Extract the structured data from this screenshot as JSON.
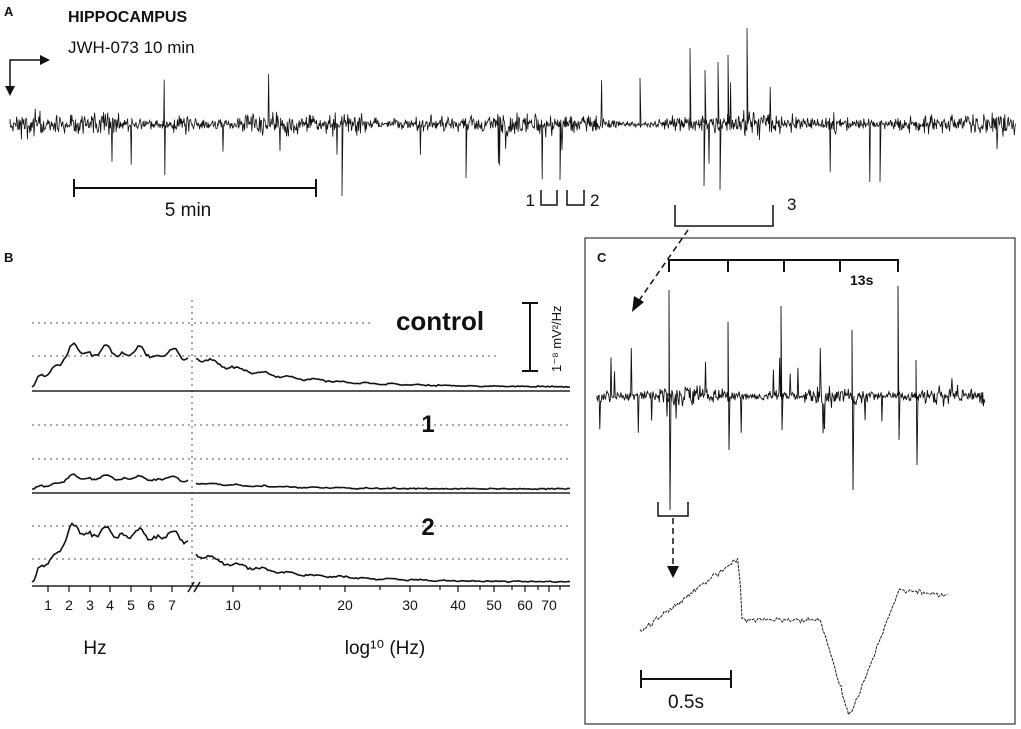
{
  "panelA": {
    "letter": "A",
    "region": "HIPPOCAMPUS",
    "drug": "JWH-073 10 min",
    "scale_label": "5 min",
    "marker1": "1",
    "marker2": "2",
    "marker3": "3"
  },
  "panelB": {
    "letter": "B",
    "spectra": [
      {
        "label": "control"
      },
      {
        "label": "1"
      },
      {
        "label": "2"
      }
    ],
    "power_scale_label": "1⁻⁸ mV²/Hz",
    "linear_ticks": [
      "1",
      "2",
      "3",
      "4",
      "5",
      "6",
      "7"
    ],
    "log_ticks": [
      "10",
      "20",
      "30",
      "40",
      "50",
      "60",
      "70"
    ],
    "xlabel_left": "Hz",
    "xlabel_right": "log¹⁰ (Hz)"
  },
  "panelC": {
    "letter": "C",
    "interval_label": "13s",
    "scale_label": "0.5s"
  },
  "colors": {
    "trace": "#111111",
    "grid": "#555555",
    "frame": "#333333"
  }
}
